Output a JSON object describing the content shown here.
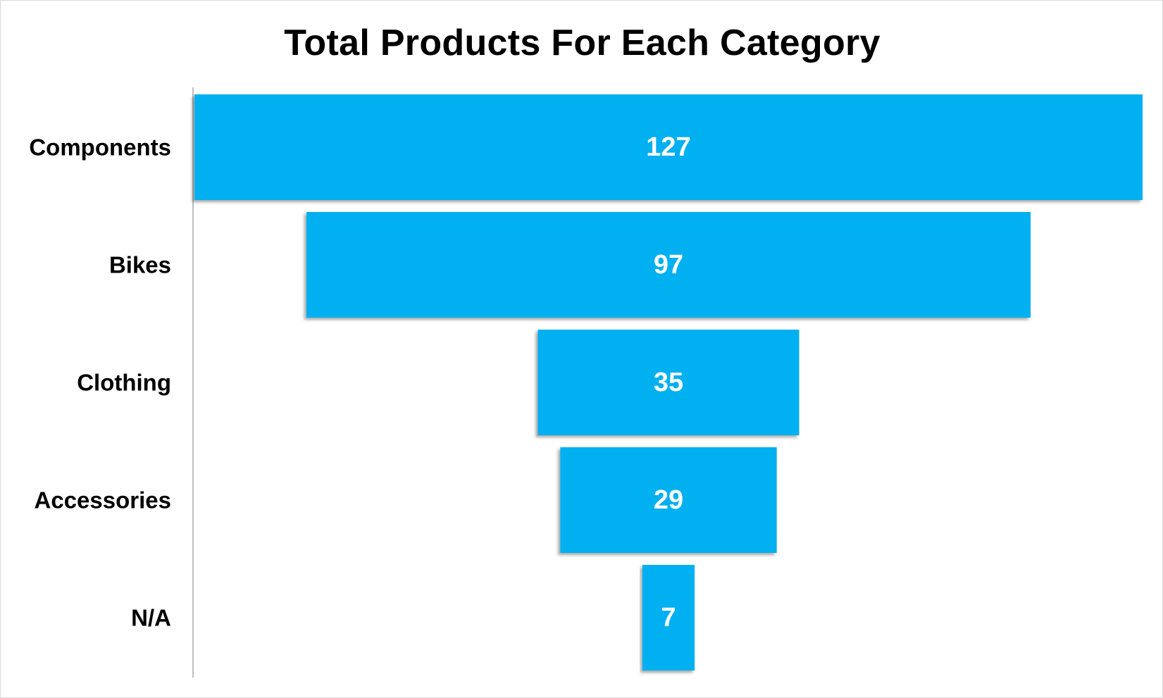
{
  "chart_data": {
    "type": "bar",
    "subtype": "funnel",
    "title": "Total Products For Each Category",
    "categories": [
      "Components",
      "Bikes",
      "Clothing",
      "Accessories",
      "N/A"
    ],
    "values": [
      127,
      97,
      35,
      29,
      7
    ],
    "xlabel": "",
    "ylabel": "",
    "grid": false,
    "legend": "none",
    "bar_color": "#00B0F0",
    "value_label_color": "#ffffff"
  }
}
